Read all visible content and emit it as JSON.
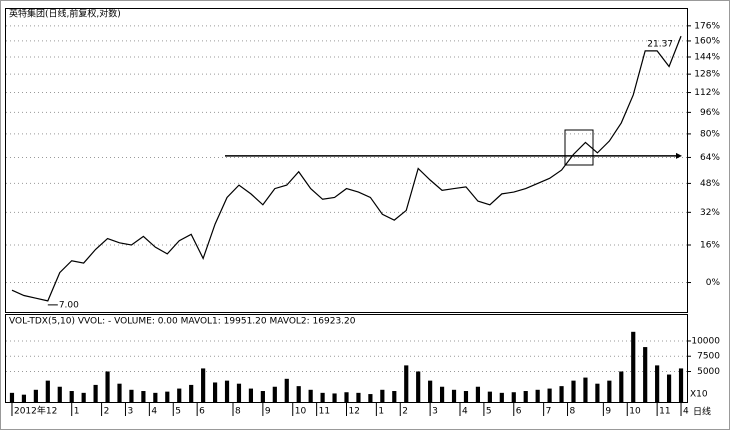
{
  "chart_data": [
    {
      "type": "line",
      "title": "英特集团(日线,前复权,对数)",
      "log_scale": true,
      "grid": true,
      "color": "#000000",
      "xlim": [
        0,
        57
      ],
      "xticks": [
        {
          "value": 0.5,
          "label": "2012年12"
        },
        {
          "value": 5.5,
          "label": "1"
        },
        {
          "value": 8,
          "label": "2"
        },
        {
          "value": 10,
          "label": "3"
        },
        {
          "value": 12,
          "label": "4"
        },
        {
          "value": 14,
          "label": "5"
        },
        {
          "value": 16,
          "label": "6"
        },
        {
          "value": 19,
          "label": "8"
        },
        {
          "value": 21.5,
          "label": "9"
        },
        {
          "value": 24,
          "label": "10"
        },
        {
          "value": 26,
          "label": "11"
        },
        {
          "value": 28.5,
          "label": "12"
        },
        {
          "value": 31,
          "label": "1"
        },
        {
          "value": 33,
          "label": "2"
        },
        {
          "value": 35.5,
          "label": "3"
        },
        {
          "value": 38,
          "label": "4"
        },
        {
          "value": 40,
          "label": "5"
        },
        {
          "value": 42.5,
          "label": "6"
        },
        {
          "value": 45,
          "label": "7"
        },
        {
          "value": 47,
          "label": "8"
        },
        {
          "value": 50,
          "label": "9"
        },
        {
          "value": 52,
          "label": "10"
        },
        {
          "value": 54.5,
          "label": "11"
        },
        {
          "value": 56.5,
          "label": "4"
        }
      ],
      "ylim": [
        -11,
        195
      ],
      "yticks": [
        {
          "value": 176,
          "label": "176%"
        },
        {
          "value": 160,
          "label": "160%"
        },
        {
          "value": 144,
          "label": "144%"
        },
        {
          "value": 128,
          "label": "128%"
        },
        {
          "value": 112,
          "label": "112%"
        },
        {
          "value": 96,
          "label": "96%"
        },
        {
          "value": 80,
          "label": "80%"
        },
        {
          "value": 64,
          "label": "64%"
        },
        {
          "value": 48,
          "label": "48%"
        },
        {
          "value": 32,
          "label": "32%"
        },
        {
          "value": 16,
          "label": "16%"
        },
        {
          "value": 0,
          "label": "0%"
        }
      ],
      "values": [
        -3,
        -5,
        -6,
        -7,
        4,
        9,
        8,
        14,
        19,
        17,
        16,
        20,
        15,
        12,
        18,
        21,
        10,
        26,
        40,
        47,
        42,
        36,
        45,
        47,
        55,
        45,
        39,
        40,
        45,
        43,
        40,
        31,
        28,
        33,
        57,
        50,
        44,
        45,
        46,
        38,
        36,
        42,
        43,
        45,
        48,
        51,
        56,
        66,
        74,
        67,
        75,
        88,
        110,
        150,
        150,
        135,
        165
      ],
      "level": 65,
      "low_label": "7.00",
      "high_label": "21.37"
    },
    {
      "type": "bar",
      "header": "VOL-TDX(5,10)  VVOL: -   VOLUME: 0.00   MAVOL1: 19951.20   MAVOL2: 16923.20",
      "unit_label": "X10",
      "period_label": "日线",
      "color": "#000000",
      "ylim": [
        0,
        13600
      ],
      "yticks": [
        10000,
        7500,
        5000
      ],
      "values": [
        1500,
        1200,
        2000,
        3500,
        2500,
        1800,
        1500,
        2800,
        5000,
        3000,
        2000,
        1800,
        1500,
        1700,
        2200,
        2800,
        5500,
        3200,
        3500,
        3000,
        2200,
        1800,
        2500,
        3800,
        2600,
        2000,
        1500,
        1400,
        1600,
        1500,
        1300,
        2000,
        1800,
        6000,
        5000,
        3500,
        2500,
        2000,
        1800,
        2500,
        1700,
        1500,
        1600,
        1800,
        2000,
        2200,
        2600,
        3500,
        4000,
        3000,
        3500,
        5000,
        11500,
        9000,
        6000,
        4500,
        5500
      ]
    }
  ]
}
